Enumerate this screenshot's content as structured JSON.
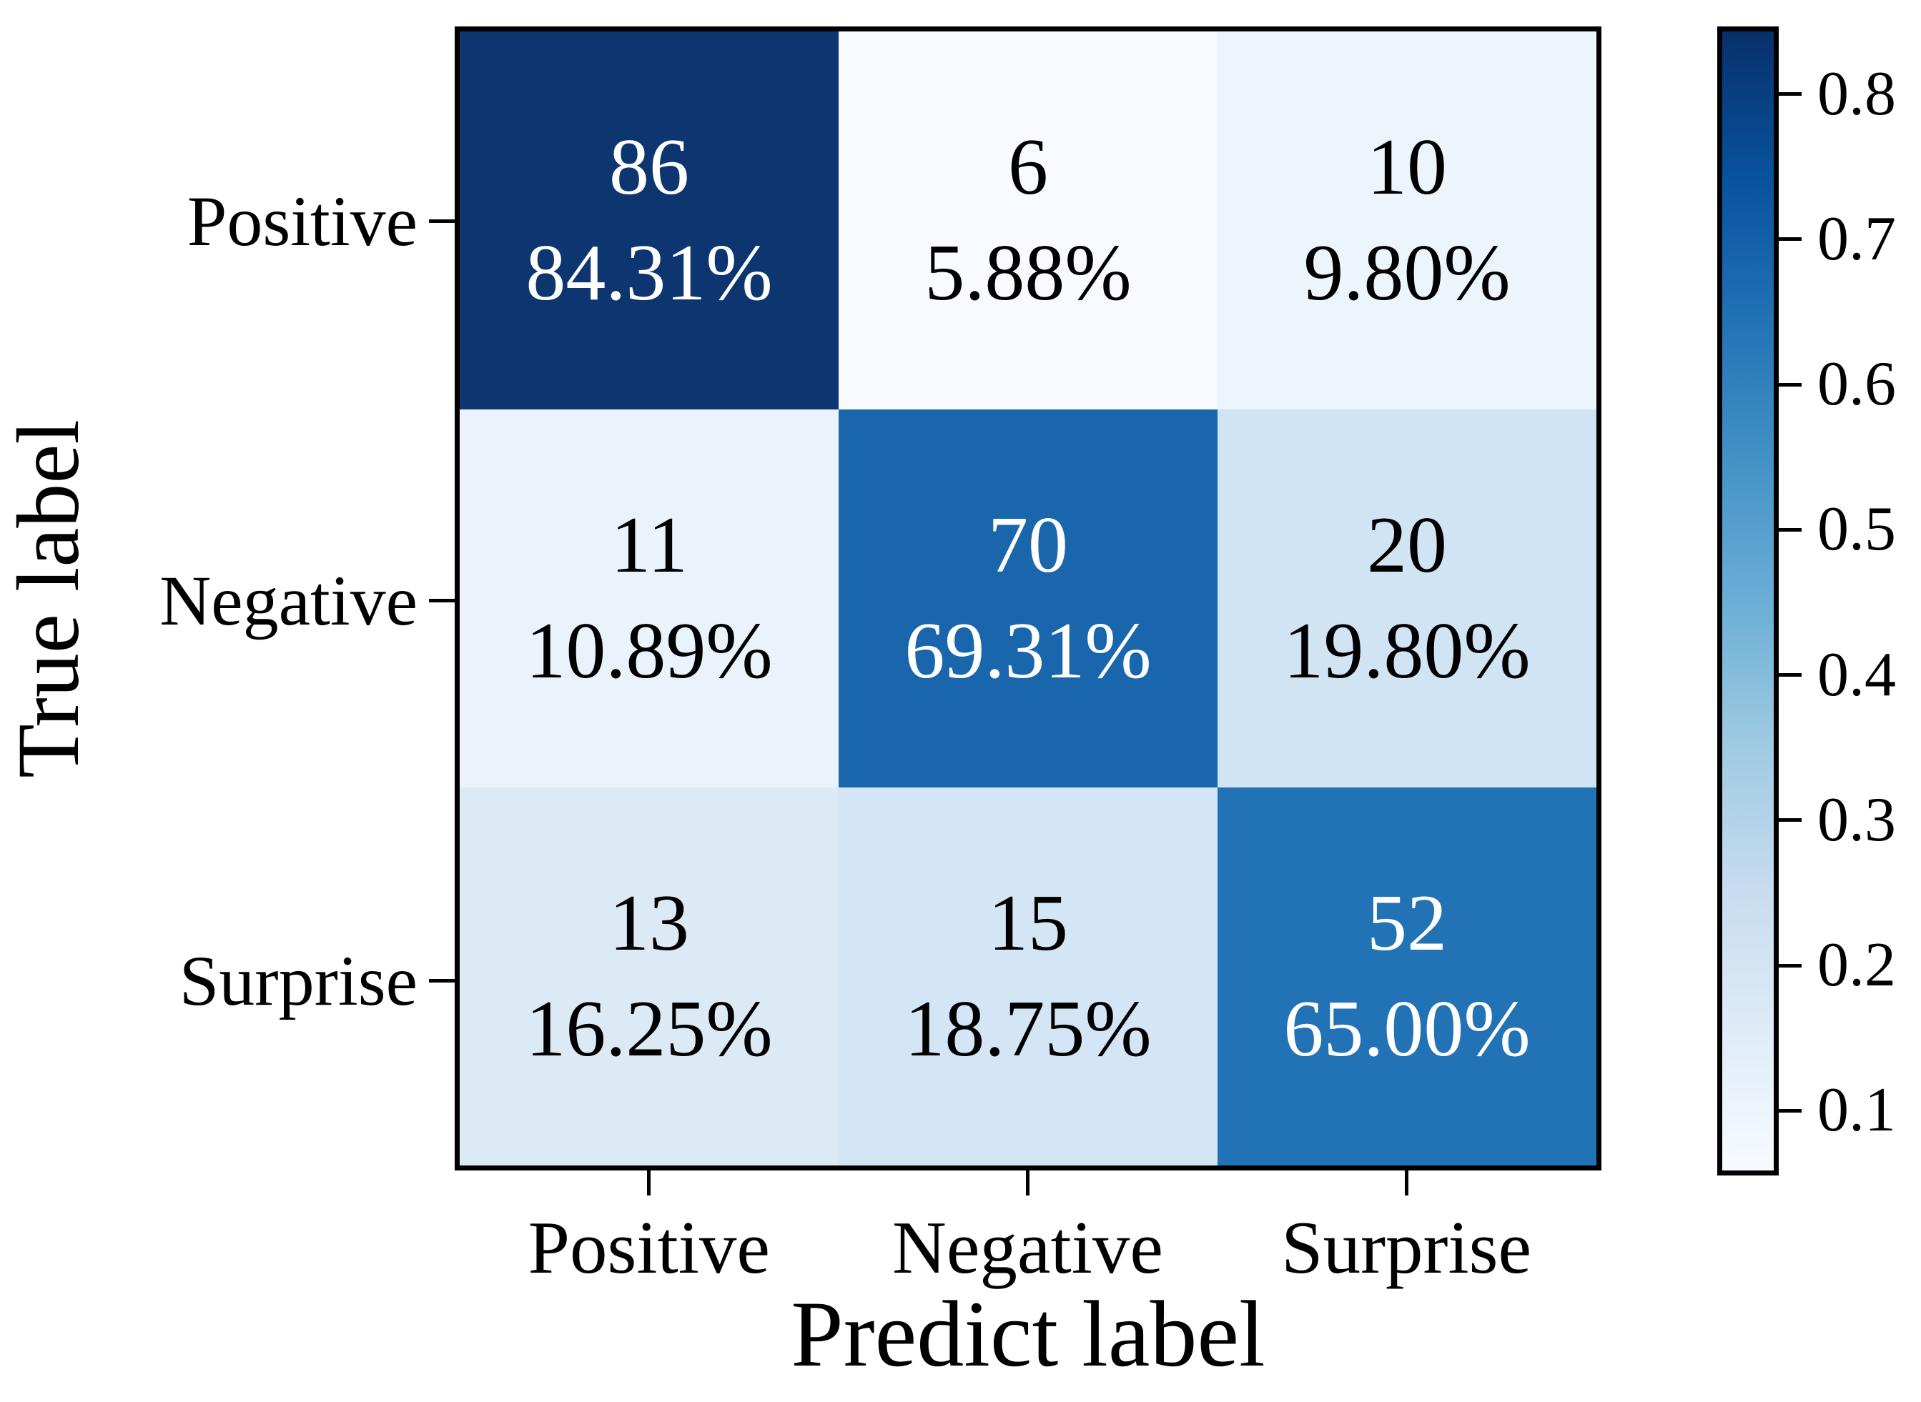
{
  "figure": {
    "background": "#ffffff",
    "axis_color": "#000000"
  },
  "chart_data": {
    "type": "heatmap",
    "title": "",
    "xlabel": "Predict label",
    "ylabel": "True label",
    "x_tick_labels": [
      "Positive",
      "Negative",
      "Surprise"
    ],
    "y_tick_labels": [
      "Positive",
      "Negative",
      "Surprise"
    ],
    "counts": [
      [
        86,
        6,
        10
      ],
      [
        11,
        70,
        20
      ],
      [
        13,
        15,
        52
      ]
    ],
    "percents": [
      [
        "84.31%",
        "5.88%",
        "9.80%"
      ],
      [
        "10.89%",
        "69.31%",
        "19.80%"
      ],
      [
        "16.25%",
        "18.75%",
        "65.00%"
      ]
    ],
    "values": [
      [
        0.8431,
        0.0588,
        0.098
      ],
      [
        0.1089,
        0.6931,
        0.198
      ],
      [
        0.1625,
        0.1875,
        0.65
      ]
    ],
    "colormap": "Blues",
    "cell_colors": [
      [
        "#0d3570",
        "#f7fbff",
        "#edf5fc"
      ],
      [
        "#eaf3fb",
        "#1966ad",
        "#d1e4f4"
      ],
      [
        "#dceaf6",
        "#d4e6f5",
        "#2272b6"
      ]
    ],
    "cell_text_colors": [
      [
        "#ffffff",
        "#000000",
        "#000000"
      ],
      [
        "#000000",
        "#ffffff",
        "#000000"
      ],
      [
        "#000000",
        "#000000",
        "#ffffff"
      ]
    ],
    "legend_position": "right",
    "grid": false,
    "colorbar": {
      "vmin": 0.0588,
      "vmax": 0.8431,
      "tick_labels": [
        "0.8",
        "0.7",
        "0.6",
        "0.5",
        "0.4",
        "0.3",
        "0.2",
        "0.1"
      ],
      "gradient_stops_bottom_to_top": [
        "#f7fbff",
        "#deebf7",
        "#c6dbef",
        "#9ecae1",
        "#6baed6",
        "#4292c6",
        "#2171b5",
        "#08519c",
        "#08306b"
      ]
    }
  }
}
